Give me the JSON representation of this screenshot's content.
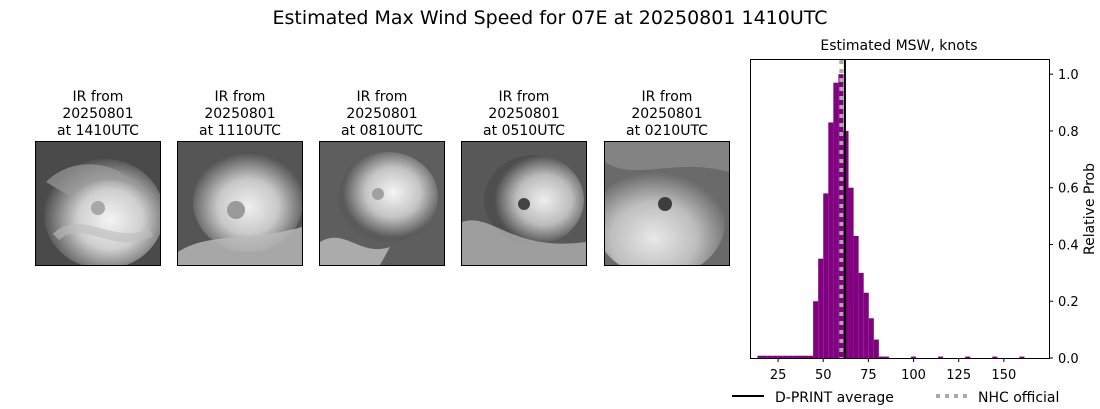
{
  "figure": {
    "title": "Estimated Max Wind Speed for 07E at 20250801 1410UTC"
  },
  "ir_panels": [
    {
      "line1": "IR from",
      "line2": "20250801",
      "line3": "at 1410UTC"
    },
    {
      "line1": "IR from",
      "line2": "20250801",
      "line3": "at 1110UTC"
    },
    {
      "line1": "IR from",
      "line2": "20250801",
      "line3": "at 0810UTC"
    },
    {
      "line1": "IR from",
      "line2": "20250801",
      "line3": "at 0510UTC"
    },
    {
      "line1": "IR from",
      "line2": "20250801",
      "line3": "at 0210UTC"
    }
  ],
  "chart_data": {
    "type": "bar",
    "title": "Estimated MSW, knots",
    "xlabel": "",
    "ylabel": "Relative Prob",
    "xlim": [
      10,
      175
    ],
    "ylim": [
      0,
      1.05
    ],
    "xticks": [
      25,
      50,
      75,
      100,
      125,
      150
    ],
    "yticks": [
      0.0,
      0.2,
      0.4,
      0.6,
      0.8,
      1.0
    ],
    "bin_width": 2.8,
    "bins": [
      {
        "x": 15.0,
        "value": 0.008
      },
      {
        "x": 17.8,
        "value": 0.008
      },
      {
        "x": 20.6,
        "value": 0.008
      },
      {
        "x": 23.4,
        "value": 0.008
      },
      {
        "x": 26.2,
        "value": 0.008
      },
      {
        "x": 29.0,
        "value": 0.008
      },
      {
        "x": 31.8,
        "value": 0.008
      },
      {
        "x": 34.6,
        "value": 0.008
      },
      {
        "x": 37.4,
        "value": 0.008
      },
      {
        "x": 40.2,
        "value": 0.008
      },
      {
        "x": 43.0,
        "value": 0.008
      },
      {
        "x": 45.8,
        "value": 0.2
      },
      {
        "x": 48.6,
        "value": 0.35
      },
      {
        "x": 51.4,
        "value": 0.58
      },
      {
        "x": 54.2,
        "value": 0.83
      },
      {
        "x": 57.0,
        "value": 0.97
      },
      {
        "x": 59.8,
        "value": 1.0
      },
      {
        "x": 62.6,
        "value": 0.8
      },
      {
        "x": 65.4,
        "value": 0.6
      },
      {
        "x": 68.2,
        "value": 0.43
      },
      {
        "x": 71.0,
        "value": 0.3
      },
      {
        "x": 73.8,
        "value": 0.23
      },
      {
        "x": 76.6,
        "value": 0.14
      },
      {
        "x": 79.4,
        "value": 0.065
      },
      {
        "x": 82.2,
        "value": 0.005
      },
      {
        "x": 85.0,
        "value": 0.005
      },
      {
        "x": 100.0,
        "value": 0.005
      },
      {
        "x": 115.0,
        "value": 0.005
      },
      {
        "x": 130.0,
        "value": 0.005
      },
      {
        "x": 145.0,
        "value": 0.005
      },
      {
        "x": 160.0,
        "value": 0.005
      }
    ],
    "bar_color": "#800080",
    "dprint_average": 62.0,
    "nhc_official": 60.0,
    "legend": [
      {
        "label": "D-PRINT average",
        "style": "solid",
        "color": "#000000"
      },
      {
        "label": "NHC official",
        "style": "dotted",
        "color": "#aaaaaa"
      }
    ],
    "legend_placement": "bottom"
  }
}
